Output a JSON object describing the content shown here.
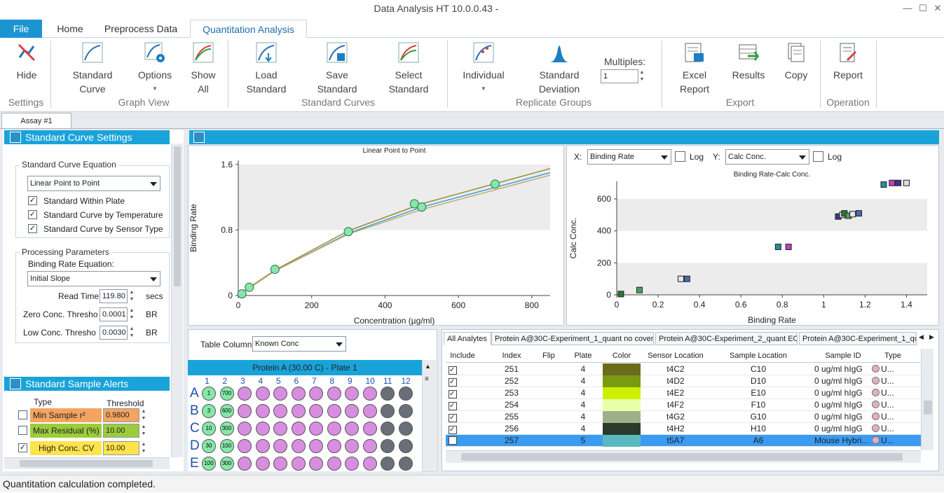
{
  "window": {
    "title": "Data Analysis HT 10.0.0.43 -"
  },
  "tabs": [
    {
      "label": "File"
    },
    {
      "label": "Home"
    },
    {
      "label": "Preprocess Data"
    },
    {
      "label": "Quantitation Analysis"
    }
  ],
  "ribbon": {
    "hide": "Hide",
    "standard_curve": [
      "Standard",
      "Curve"
    ],
    "options": "Options",
    "show_all": [
      "Show",
      "All"
    ],
    "load_standard": [
      "Load",
      "Standard"
    ],
    "save_standard": [
      "Save",
      "Standard"
    ],
    "select_standard": [
      "Select",
      "Standard"
    ],
    "individual": "Individual",
    "standard_deviation": [
      "Standard",
      "Deviation"
    ],
    "multiples_label": "Multiples:",
    "multiples_value": "1",
    "excel_report": [
      "Excel",
      "Report"
    ],
    "results": "Results",
    "copy": "Copy",
    "report": "Report",
    "groups": [
      "Settings",
      "Graph View",
      "Standard Curves",
      "Replicate Groups",
      "Export",
      "Operation"
    ]
  },
  "assay_tab": "Assay #1",
  "settings": {
    "header": "Standard Curve Settings",
    "equation_group": "Standard Curve Equation",
    "equation_value": "Linear Point to Point",
    "checks": [
      {
        "label": "Standard Within Plate",
        "checked": true
      },
      {
        "label": "Standard Curve by Temperature",
        "checked": true
      },
      {
        "label": "Standard Curve by Sensor Type",
        "checked": true
      }
    ],
    "processing_group": "Processing Parameters",
    "binding_rate_eq_label": "Binding Rate Equation:",
    "binding_rate_eq_value": "Initial Slope",
    "read_time_label": "Read Time",
    "read_time_value": "119.80",
    "read_time_unit": "secs",
    "zero_conc_label": "Zero Conc. Thresho",
    "zero_conc_value": "0.0001",
    "zero_conc_unit": "BR",
    "low_conc_label": "Low Conc. Thresho",
    "low_conc_value": "0.0030",
    "low_conc_unit": "BR"
  },
  "alerts": {
    "header": "Standard Sample Alerts",
    "col_type": "Type",
    "col_threshold": "Threshold",
    "items": [
      {
        "label": "Min Sample r²",
        "value": "0.9800",
        "checked": false,
        "color": "#f4a460"
      },
      {
        "label": "Max Residual (%)",
        "value": "10.00",
        "checked": false,
        "color": "#9ccc3c"
      },
      {
        "label": "High Conc. CV",
        "value": "10.00",
        "checked": true,
        "color": "#ffe34d"
      }
    ]
  },
  "chart_data": [
    {
      "type": "line",
      "title": "Linear Point to Point",
      "xlabel": "Concentration (µg/ml)",
      "ylabel": "Binding Rate",
      "xlim": [
        0,
        850
      ],
      "ylim": [
        0,
        1.65
      ],
      "xticks": [
        "0",
        "200",
        "400",
        "600",
        "800"
      ],
      "yticks": [
        "0",
        "0.8",
        "1.6"
      ],
      "series": [
        {
          "color": "#9c8a2e",
          "x": [
            0,
            30,
            100,
            300,
            500,
            850
          ],
          "y": [
            0.0,
            0.1,
            0.31,
            0.79,
            1.12,
            1.55
          ]
        },
        {
          "color": "#3aa0d8",
          "x": [
            0,
            30,
            100,
            300,
            500,
            850
          ],
          "y": [
            0.0,
            0.09,
            0.3,
            0.76,
            1.08,
            1.5
          ]
        },
        {
          "color": "#c8a870",
          "x": [
            0,
            30,
            100,
            300,
            500,
            850
          ],
          "y": [
            0.0,
            0.095,
            0.3,
            0.75,
            1.05,
            1.47
          ]
        }
      ],
      "points": {
        "x": [
          10,
          30,
          100,
          300,
          480,
          500,
          700
        ],
        "y": [
          0.02,
          0.1,
          0.32,
          0.78,
          1.12,
          1.08,
          1.36
        ]
      }
    },
    {
      "type": "scatter",
      "title": "Binding Rate-Calc Conc.",
      "xlabel": "Binding Rate",
      "ylabel": "Calc Conc.",
      "xlim": [
        0,
        1.5
      ],
      "ylim": [
        0,
        710
      ],
      "xticks": [
        "0",
        "0.2",
        "0.4",
        "0.6",
        "0.8",
        "1",
        "1.2",
        "1.4"
      ],
      "yticks": [
        "0",
        "200",
        "400",
        "600"
      ],
      "points": {
        "x": [
          0.02,
          0.11,
          0.31,
          0.34,
          0.78,
          0.83,
          1.07,
          1.09,
          1.1,
          1.12,
          1.14,
          1.17,
          1.29,
          1.33,
          1.36,
          1.4
        ],
        "y": [
          5,
          30,
          100,
          100,
          300,
          300,
          490,
          500,
          510,
          495,
          505,
          510,
          690,
          700,
          700,
          700
        ]
      }
    }
  ],
  "axis_selectors": {
    "x_label": "X:",
    "x_value": "Binding Rate",
    "log": "Log",
    "y_label": "Y:",
    "y_value": "Calc Conc."
  },
  "plate": {
    "table_column_label": "Table Column",
    "table_column_value": "Known Conc",
    "title": "Protein A (30.00 C) - Plate 1",
    "cols": [
      "1",
      "2",
      "3",
      "4",
      "5",
      "6",
      "7",
      "8",
      "9",
      "10",
      "11",
      "12"
    ],
    "rows": [
      "A",
      "B",
      "C",
      "D",
      "E"
    ],
    "col1": [
      "1",
      "3",
      "10",
      "30",
      "100"
    ],
    "col2": [
      "700",
      "600",
      "300",
      "100",
      "300"
    ]
  },
  "analyte_tabs": [
    "All Analytes",
    "Protein A@30C-Experiment_1_quant no cover",
    "Protein A@30C-Experiment_2_quant EC",
    "Protein A@30C-Experiment_1_qu"
  ],
  "table": {
    "headers": [
      "Include",
      "Index",
      "Flip",
      "Plate",
      "Color",
      "Sensor Location",
      "Sample Location",
      "Sample ID",
      "Type"
    ],
    "rows": [
      {
        "include": true,
        "index": "251",
        "flip": "",
        "plate": "4",
        "color": "#6b6b1e",
        "sensor": "t4C2",
        "sample_loc": "C10",
        "sample_id": "0 ug/ml hIgG",
        "type": "U..."
      },
      {
        "include": true,
        "index": "252",
        "flip": "",
        "plate": "4",
        "color": "#7a9a10",
        "sensor": "t4D2",
        "sample_loc": "D10",
        "sample_id": "0 ug/ml hIgG",
        "type": "U..."
      },
      {
        "include": true,
        "index": "253",
        "flip": "",
        "plate": "4",
        "color": "#ccf000",
        "sensor": "t4E2",
        "sample_loc": "E10",
        "sample_id": "0 ug/ml hIgG",
        "type": "U..."
      },
      {
        "include": true,
        "index": "254",
        "flip": "",
        "plate": "4",
        "color": "#eaffaa",
        "sensor": "t4F2",
        "sample_loc": "F10",
        "sample_id": "0 ug/ml hIgG",
        "type": "U..."
      },
      {
        "include": true,
        "index": "255",
        "flip": "",
        "plate": "4",
        "color": "#9eb08a",
        "sensor": "t4G2",
        "sample_loc": "G10",
        "sample_id": "0 ug/ml hIgG",
        "type": "U..."
      },
      {
        "include": true,
        "index": "256",
        "flip": "",
        "plate": "4",
        "color": "#2a3a2a",
        "sensor": "t4H2",
        "sample_loc": "H10",
        "sample_id": "0 ug/ml hIgG",
        "type": "U..."
      },
      {
        "include": false,
        "index": "257",
        "flip": "",
        "plate": "5",
        "color": "#5ab8c0",
        "sensor": "t5A7",
        "sample_loc": "A6",
        "sample_id": "Mouse Hybri...",
        "type": "U..."
      }
    ]
  },
  "status": "Quantitation calculation completed."
}
